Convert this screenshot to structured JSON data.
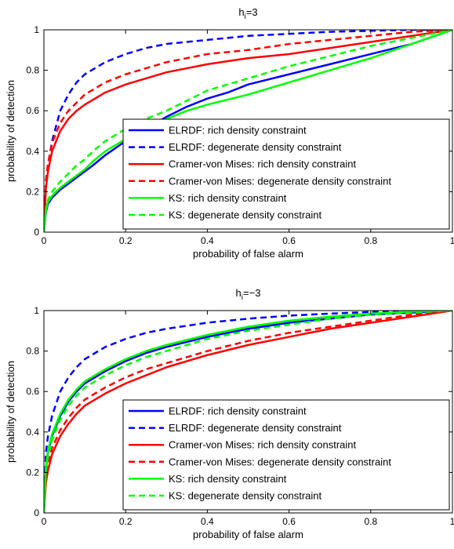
{
  "colors": {
    "ELRDF": "#0000ff",
    "Cramer-von Mises": "#ff0000",
    "KS": "#00ff00"
  },
  "chart_data": [
    {
      "type": "line",
      "title": {
        "base": "h",
        "sub": "i",
        "rest": "=3"
      },
      "xlabel": "probability of false alarm",
      "ylabel": "probability of detection",
      "xlim": [
        0,
        1
      ],
      "ylim": [
        0,
        1
      ],
      "xticks": [
        "0",
        "0.2",
        "0.4",
        "0.6",
        "0.8",
        "1"
      ],
      "yticks": [
        "0",
        "0.2",
        "0.4",
        "0.6",
        "0.8",
        "1"
      ],
      "grid": false,
      "legend": "lower-right",
      "series": [
        {
          "name": "ELRDF: rich density constraint",
          "color": "#0000ff",
          "dash": false,
          "x": [
            0,
            0.005,
            0.01,
            0.02,
            0.04,
            0.06,
            0.08,
            0.1,
            0.12,
            0.15,
            0.2,
            0.25,
            0.3,
            0.35,
            0.4,
            0.45,
            0.5,
            0.6,
            0.7,
            0.8,
            0.9,
            1.0
          ],
          "y": [
            0,
            0.1,
            0.14,
            0.17,
            0.21,
            0.24,
            0.27,
            0.3,
            0.33,
            0.38,
            0.45,
            0.51,
            0.57,
            0.62,
            0.66,
            0.69,
            0.73,
            0.78,
            0.83,
            0.88,
            0.93,
            1.0
          ]
        },
        {
          "name": "ELRDF: degenerate density constraint",
          "color": "#0000ff",
          "dash": true,
          "x": [
            0,
            0.005,
            0.01,
            0.02,
            0.04,
            0.06,
            0.08,
            0.1,
            0.15,
            0.2,
            0.25,
            0.3,
            0.4,
            0.5,
            0.6,
            0.7,
            0.8,
            0.9,
            1.0
          ],
          "y": [
            0,
            0.25,
            0.33,
            0.45,
            0.6,
            0.68,
            0.74,
            0.78,
            0.84,
            0.88,
            0.91,
            0.93,
            0.95,
            0.97,
            0.98,
            0.99,
            0.995,
            1.0,
            1.0
          ]
        },
        {
          "name": "Cramer-von Mises: rich density constraint",
          "color": "#ff0000",
          "dash": false,
          "x": [
            0,
            0.005,
            0.01,
            0.02,
            0.04,
            0.06,
            0.08,
            0.1,
            0.15,
            0.2,
            0.25,
            0.3,
            0.4,
            0.5,
            0.6,
            0.7,
            0.8,
            0.9,
            1.0
          ],
          "y": [
            0,
            0.22,
            0.3,
            0.4,
            0.5,
            0.56,
            0.6,
            0.63,
            0.69,
            0.73,
            0.76,
            0.79,
            0.83,
            0.86,
            0.88,
            0.91,
            0.94,
            0.97,
            1.0
          ]
        },
        {
          "name": "Cramer-von Mises: degenerate density constraint",
          "color": "#ff0000",
          "dash": true,
          "x": [
            0,
            0.005,
            0.01,
            0.02,
            0.04,
            0.06,
            0.08,
            0.1,
            0.15,
            0.2,
            0.25,
            0.3,
            0.4,
            0.5,
            0.6,
            0.7,
            0.8,
            0.9,
            1.0
          ],
          "y": [
            0,
            0.26,
            0.34,
            0.44,
            0.54,
            0.6,
            0.64,
            0.68,
            0.74,
            0.78,
            0.81,
            0.84,
            0.88,
            0.9,
            0.93,
            0.95,
            0.97,
            0.99,
            1.0
          ]
        },
        {
          "name": "KS: rich density constraint",
          "color": "#00ff00",
          "dash": false,
          "x": [
            0,
            0.005,
            0.01,
            0.02,
            0.04,
            0.06,
            0.08,
            0.1,
            0.12,
            0.15,
            0.2,
            0.25,
            0.3,
            0.35,
            0.4,
            0.5,
            0.6,
            0.7,
            0.8,
            0.9,
            1.0
          ],
          "y": [
            0,
            0.11,
            0.15,
            0.18,
            0.22,
            0.25,
            0.28,
            0.31,
            0.35,
            0.4,
            0.46,
            0.52,
            0.56,
            0.6,
            0.63,
            0.68,
            0.74,
            0.8,
            0.86,
            0.93,
            1.0
          ]
        },
        {
          "name": "KS: degenerate density constraint",
          "color": "#00ff00",
          "dash": true,
          "x": [
            0,
            0.005,
            0.01,
            0.02,
            0.04,
            0.06,
            0.08,
            0.1,
            0.12,
            0.15,
            0.2,
            0.25,
            0.3,
            0.35,
            0.4,
            0.5,
            0.6,
            0.7,
            0.8,
            0.9,
            1.0
          ],
          "y": [
            0,
            0.12,
            0.16,
            0.2,
            0.25,
            0.29,
            0.33,
            0.36,
            0.4,
            0.45,
            0.51,
            0.56,
            0.6,
            0.65,
            0.7,
            0.76,
            0.82,
            0.87,
            0.92,
            0.96,
            1.0
          ]
        }
      ]
    },
    {
      "type": "line",
      "title": {
        "base": "h",
        "sub": "i",
        "rest": "=−3"
      },
      "xlabel": "probability of false alarm",
      "ylabel": "probability of detection",
      "xlim": [
        0,
        1
      ],
      "ylim": [
        0,
        1
      ],
      "xticks": [
        "0",
        "0.2",
        "0.4",
        "0.6",
        "0.8",
        "1"
      ],
      "yticks": [
        "0",
        "0.2",
        "0.4",
        "0.6",
        "0.8",
        "1"
      ],
      "grid": false,
      "legend": "lower-right",
      "series": [
        {
          "name": "ELRDF: rich density constraint",
          "color": "#0000ff",
          "dash": false,
          "x": [
            0,
            0.005,
            0.01,
            0.02,
            0.04,
            0.06,
            0.08,
            0.1,
            0.15,
            0.2,
            0.25,
            0.3,
            0.4,
            0.5,
            0.6,
            0.7,
            0.8,
            0.9,
            1.0
          ],
          "y": [
            0,
            0.22,
            0.3,
            0.38,
            0.48,
            0.55,
            0.6,
            0.64,
            0.7,
            0.75,
            0.79,
            0.82,
            0.87,
            0.91,
            0.94,
            0.96,
            0.98,
            0.99,
            1.0
          ]
        },
        {
          "name": "ELRDF: degenerate density constraint",
          "color": "#0000ff",
          "dash": true,
          "x": [
            0,
            0.005,
            0.01,
            0.02,
            0.04,
            0.06,
            0.08,
            0.1,
            0.15,
            0.2,
            0.25,
            0.3,
            0.4,
            0.5,
            0.6,
            0.7,
            0.8,
            0.9,
            1.0
          ],
          "y": [
            0,
            0.3,
            0.38,
            0.48,
            0.6,
            0.67,
            0.72,
            0.76,
            0.82,
            0.86,
            0.89,
            0.91,
            0.94,
            0.96,
            0.975,
            0.985,
            0.993,
            0.998,
            1.0
          ]
        },
        {
          "name": "Cramer-von Mises: rich density constraint",
          "color": "#ff0000",
          "dash": false,
          "x": [
            0,
            0.005,
            0.01,
            0.02,
            0.04,
            0.06,
            0.08,
            0.1,
            0.15,
            0.2,
            0.25,
            0.3,
            0.4,
            0.5,
            0.6,
            0.7,
            0.8,
            0.9,
            1.0
          ],
          "y": [
            0,
            0.15,
            0.21,
            0.29,
            0.38,
            0.44,
            0.49,
            0.53,
            0.59,
            0.64,
            0.68,
            0.72,
            0.78,
            0.83,
            0.87,
            0.91,
            0.94,
            0.97,
            1.0
          ]
        },
        {
          "name": "Cramer-von Mises: degenerate density constraint",
          "color": "#ff0000",
          "dash": true,
          "x": [
            0,
            0.005,
            0.01,
            0.02,
            0.04,
            0.06,
            0.08,
            0.1,
            0.15,
            0.2,
            0.25,
            0.3,
            0.4,
            0.5,
            0.6,
            0.7,
            0.8,
            0.9,
            1.0
          ],
          "y": [
            0,
            0.18,
            0.24,
            0.32,
            0.41,
            0.47,
            0.52,
            0.56,
            0.62,
            0.67,
            0.71,
            0.74,
            0.8,
            0.85,
            0.89,
            0.92,
            0.95,
            0.98,
            1.0
          ]
        },
        {
          "name": "KS: rich density constraint",
          "color": "#00ff00",
          "dash": false,
          "x": [
            0,
            0.005,
            0.01,
            0.02,
            0.04,
            0.06,
            0.08,
            0.1,
            0.15,
            0.2,
            0.25,
            0.3,
            0.4,
            0.5,
            0.6,
            0.7,
            0.8,
            0.9,
            1.0
          ],
          "y": [
            0,
            0.23,
            0.31,
            0.39,
            0.49,
            0.56,
            0.61,
            0.65,
            0.71,
            0.76,
            0.8,
            0.83,
            0.88,
            0.92,
            0.95,
            0.97,
            0.985,
            0.995,
            1.0
          ]
        },
        {
          "name": "KS: degenerate density constraint",
          "color": "#00ff00",
          "dash": true,
          "x": [
            0,
            0.005,
            0.01,
            0.02,
            0.04,
            0.06,
            0.08,
            0.1,
            0.15,
            0.2,
            0.25,
            0.3,
            0.4,
            0.5,
            0.6,
            0.7,
            0.8,
            0.9,
            1.0
          ],
          "y": [
            0,
            0.21,
            0.28,
            0.36,
            0.46,
            0.53,
            0.58,
            0.62,
            0.68,
            0.73,
            0.77,
            0.8,
            0.86,
            0.9,
            0.93,
            0.96,
            0.98,
            0.99,
            1.0
          ]
        }
      ]
    }
  ]
}
